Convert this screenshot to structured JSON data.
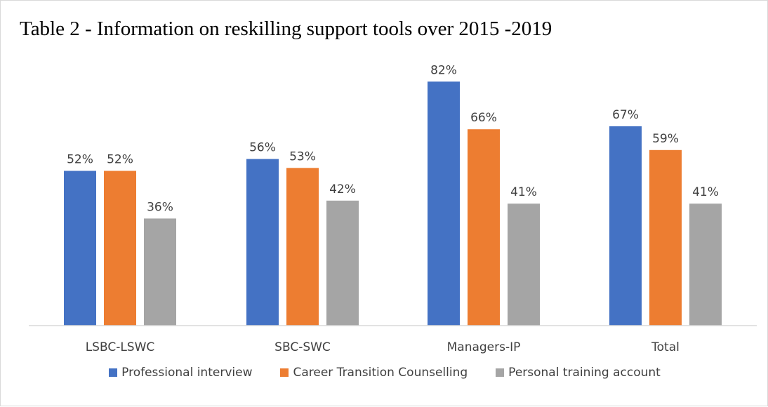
{
  "chart_data": {
    "type": "bar",
    "title": "Table 2 - Information on reskilling support tools over 2015 -2019",
    "categories": [
      "LSBC-LSWC",
      "SBC-SWC",
      "Managers-IP",
      "Total"
    ],
    "series": [
      {
        "name": "Professional interview",
        "color": "#4472c4",
        "values": [
          52,
          56,
          82,
          67
        ],
        "labels": [
          "52%",
          "56%",
          "82%",
          "67%"
        ]
      },
      {
        "name": "Career Transition Counselling",
        "color": "#ed7d31",
        "values": [
          52,
          53,
          66,
          59
        ],
        "labels": [
          "52%",
          "53%",
          "66%",
          "59%"
        ]
      },
      {
        "name": "Personal training account",
        "color": "#a5a5a5",
        "values": [
          36,
          42,
          41,
          41
        ],
        "labels": [
          "36%",
          "42%",
          "41%",
          "41%"
        ]
      }
    ],
    "ylim": [
      0,
      100
    ],
    "value_format": "percent",
    "grid": false,
    "legend_position": "bottom"
  }
}
